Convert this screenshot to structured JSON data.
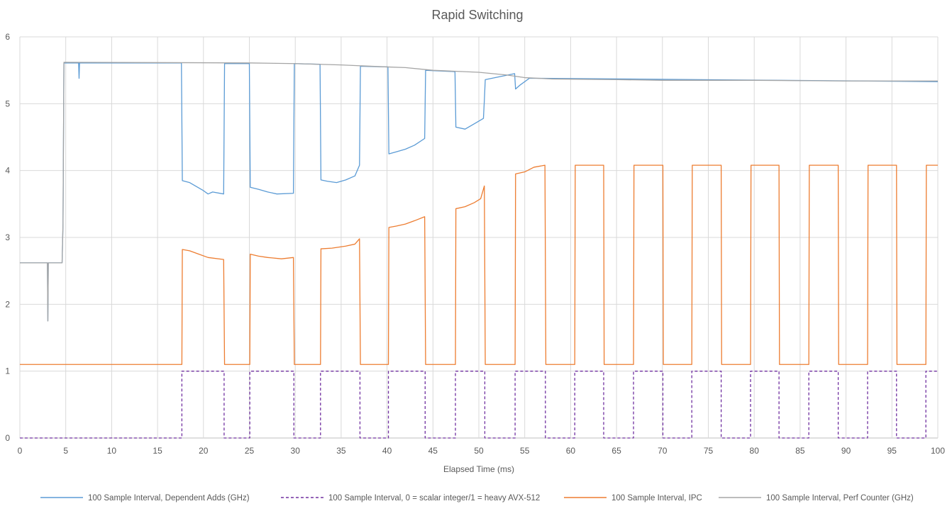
{
  "chart_data": {
    "type": "line",
    "title": "Rapid Switching",
    "xlabel": "Elapsed Time (ms)",
    "ylabel": "",
    "xlim": [
      0,
      100
    ],
    "ylim": [
      0,
      6
    ],
    "x_ticks": [
      "0",
      "5",
      "10",
      "15",
      "20",
      "25",
      "30",
      "35",
      "40",
      "45",
      "50",
      "55",
      "60",
      "65",
      "70",
      "75",
      "80",
      "85",
      "90",
      "95",
      "100"
    ],
    "y_ticks": [
      "0",
      "1",
      "2",
      "3",
      "4",
      "5",
      "6"
    ],
    "grid": true,
    "legend_position": "bottom",
    "series": [
      {
        "name": "100 Sample Interval, Dependent Adds (GHz)",
        "color": "#5b9bd5",
        "style": "solid",
        "points": [
          [
            0,
            2.62
          ],
          [
            3.0,
            2.62
          ],
          [
            3.05,
            1.75
          ],
          [
            3.1,
            2.62
          ],
          [
            4.6,
            2.62
          ],
          [
            4.7,
            3.2
          ],
          [
            4.8,
            5.61
          ],
          [
            6.4,
            5.61
          ],
          [
            6.45,
            5.38
          ],
          [
            6.5,
            5.61
          ],
          [
            17.6,
            5.61
          ],
          [
            17.7,
            3.85
          ],
          [
            18.5,
            3.82
          ],
          [
            19.0,
            3.78
          ],
          [
            20.0,
            3.7
          ],
          [
            20.5,
            3.65
          ],
          [
            21.0,
            3.68
          ],
          [
            22.2,
            3.65
          ],
          [
            22.3,
            5.6
          ],
          [
            25.0,
            5.6
          ],
          [
            25.1,
            3.75
          ],
          [
            26.0,
            3.72
          ],
          [
            27.0,
            3.68
          ],
          [
            28.0,
            3.65
          ],
          [
            29.8,
            3.66
          ],
          [
            29.9,
            5.6
          ],
          [
            32.7,
            5.59
          ],
          [
            32.8,
            3.86
          ],
          [
            33.5,
            3.84
          ],
          [
            34.5,
            3.82
          ],
          [
            35.5,
            3.86
          ],
          [
            36.5,
            3.92
          ],
          [
            37.0,
            4.08
          ],
          [
            37.1,
            5.56
          ],
          [
            40.1,
            5.55
          ],
          [
            40.2,
            4.25
          ],
          [
            41.0,
            4.28
          ],
          [
            42.0,
            4.32
          ],
          [
            43.0,
            4.38
          ],
          [
            44.1,
            4.48
          ],
          [
            44.2,
            5.5
          ],
          [
            47.4,
            5.48
          ],
          [
            47.5,
            4.65
          ],
          [
            48.5,
            4.62
          ],
          [
            49.5,
            4.7
          ],
          [
            50.5,
            4.78
          ],
          [
            50.6,
            5.05
          ],
          [
            50.7,
            5.36
          ],
          [
            53.9,
            5.45
          ],
          [
            54.0,
            5.22
          ],
          [
            54.5,
            5.28
          ],
          [
            55.5,
            5.38
          ],
          [
            57.0,
            5.38
          ],
          [
            100,
            5.33
          ]
        ]
      },
      {
        "name": "100 Sample Interval, 0 = scalar integer/1 = heavy AVX-512",
        "color": "#7030a0",
        "style": "dashed",
        "points": [
          [
            0,
            0
          ],
          [
            17.65,
            0
          ],
          [
            17.65,
            1
          ],
          [
            22.25,
            1
          ],
          [
            22.25,
            0
          ],
          [
            25.05,
            0
          ],
          [
            25.05,
            1
          ],
          [
            29.85,
            1
          ],
          [
            29.85,
            0
          ],
          [
            32.75,
            0
          ],
          [
            32.75,
            1
          ],
          [
            37.05,
            1
          ],
          [
            37.05,
            0
          ],
          [
            40.15,
            0
          ],
          [
            40.15,
            1
          ],
          [
            44.15,
            1
          ],
          [
            44.15,
            0
          ],
          [
            47.45,
            0
          ],
          [
            47.45,
            1
          ],
          [
            50.65,
            1
          ],
          [
            50.65,
            0
          ],
          [
            53.95,
            0
          ],
          [
            53.95,
            1
          ],
          [
            57.25,
            1
          ],
          [
            57.25,
            0
          ],
          [
            60.45,
            0
          ],
          [
            60.45,
            1
          ],
          [
            63.6,
            1
          ],
          [
            63.6,
            0
          ],
          [
            66.85,
            0
          ],
          [
            66.85,
            1
          ],
          [
            70.05,
            1
          ],
          [
            70.05,
            0
          ],
          [
            73.2,
            0
          ],
          [
            73.2,
            1
          ],
          [
            76.4,
            1
          ],
          [
            76.4,
            0
          ],
          [
            79.6,
            0
          ],
          [
            79.6,
            1
          ],
          [
            82.7,
            1
          ],
          [
            82.7,
            0
          ],
          [
            85.95,
            0
          ],
          [
            85.95,
            1
          ],
          [
            89.15,
            1
          ],
          [
            89.15,
            0
          ],
          [
            92.35,
            0
          ],
          [
            92.35,
            1
          ],
          [
            95.5,
            1
          ],
          [
            95.5,
            0
          ],
          [
            98.7,
            0
          ],
          [
            98.7,
            1
          ],
          [
            100,
            1
          ]
        ]
      },
      {
        "name": "100 Sample Interval, IPC",
        "color": "#ed7d31",
        "style": "solid",
        "points": [
          [
            0,
            1.1
          ],
          [
            17.65,
            1.1
          ],
          [
            17.7,
            2.82
          ],
          [
            18.5,
            2.8
          ],
          [
            19.5,
            2.75
          ],
          [
            20.5,
            2.7
          ],
          [
            22.2,
            2.67
          ],
          [
            22.3,
            1.1
          ],
          [
            25.05,
            1.1
          ],
          [
            25.1,
            2.75
          ],
          [
            26.0,
            2.72
          ],
          [
            27.0,
            2.7
          ],
          [
            28.5,
            2.68
          ],
          [
            29.8,
            2.7
          ],
          [
            29.9,
            1.1
          ],
          [
            32.75,
            1.1
          ],
          [
            32.8,
            2.83
          ],
          [
            34.0,
            2.84
          ],
          [
            35.5,
            2.87
          ],
          [
            36.5,
            2.9
          ],
          [
            37.0,
            2.98
          ],
          [
            37.1,
            1.1
          ],
          [
            40.15,
            1.1
          ],
          [
            40.2,
            3.15
          ],
          [
            41.0,
            3.17
          ],
          [
            42.0,
            3.2
          ],
          [
            43.0,
            3.25
          ],
          [
            44.1,
            3.31
          ],
          [
            44.2,
            1.1
          ],
          [
            47.45,
            1.1
          ],
          [
            47.5,
            3.43
          ],
          [
            48.5,
            3.46
          ],
          [
            49.5,
            3.52
          ],
          [
            50.2,
            3.58
          ],
          [
            50.6,
            3.77
          ],
          [
            50.7,
            1.1
          ],
          [
            53.95,
            1.1
          ],
          [
            54.0,
            3.95
          ],
          [
            55.0,
            3.98
          ],
          [
            56.0,
            4.05
          ],
          [
            57.2,
            4.08
          ],
          [
            57.3,
            1.1
          ],
          [
            60.45,
            1.1
          ],
          [
            60.5,
            4.08
          ],
          [
            63.6,
            4.08
          ],
          [
            63.65,
            1.1
          ],
          [
            66.85,
            1.1
          ],
          [
            66.9,
            4.08
          ],
          [
            70.05,
            4.08
          ],
          [
            70.1,
            1.1
          ],
          [
            73.2,
            1.1
          ],
          [
            73.25,
            4.08
          ],
          [
            76.4,
            4.08
          ],
          [
            76.45,
            1.1
          ],
          [
            79.6,
            1.1
          ],
          [
            79.65,
            4.08
          ],
          [
            82.7,
            4.08
          ],
          [
            82.75,
            1.1
          ],
          [
            85.95,
            1.1
          ],
          [
            86.0,
            4.08
          ],
          [
            89.15,
            4.08
          ],
          [
            89.2,
            1.1
          ],
          [
            92.35,
            1.1
          ],
          [
            92.4,
            4.08
          ],
          [
            95.5,
            4.08
          ],
          [
            95.55,
            1.1
          ],
          [
            98.7,
            1.1
          ],
          [
            98.75,
            4.08
          ],
          [
            100,
            4.08
          ]
        ]
      },
      {
        "name": "100 Sample Interval, Perf Counter (GHz)",
        "color": "#a5a5a5",
        "style": "solid",
        "points": [
          [
            0,
            2.62
          ],
          [
            3.0,
            2.62
          ],
          [
            3.05,
            1.75
          ],
          [
            3.1,
            2.62
          ],
          [
            4.6,
            2.62
          ],
          [
            4.7,
            3.2
          ],
          [
            4.8,
            5.62
          ],
          [
            25,
            5.61
          ],
          [
            30,
            5.6
          ],
          [
            35,
            5.58
          ],
          [
            40,
            5.55
          ],
          [
            42,
            5.54
          ],
          [
            45,
            5.5
          ],
          [
            50,
            5.47
          ],
          [
            53,
            5.43
          ],
          [
            55,
            5.39
          ],
          [
            58,
            5.37
          ],
          [
            65,
            5.36
          ],
          [
            70,
            5.35
          ],
          [
            80,
            5.35
          ],
          [
            90,
            5.34
          ],
          [
            100,
            5.34
          ]
        ]
      }
    ]
  }
}
